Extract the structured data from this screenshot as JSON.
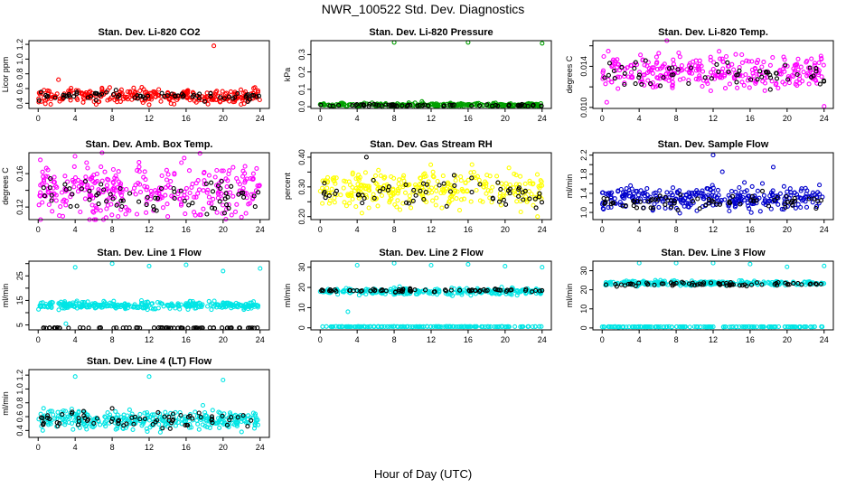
{
  "page": {
    "title": "NWR_100522  Std. Dev. Diagnostics",
    "x_caption": "Hour of Day (UTC)"
  },
  "chart_data": [
    {
      "type": "scatter",
      "title": "Stan. Dev. Li-820 CO2",
      "ylabel": "Licor ppm",
      "xlim": [
        -1,
        25
      ],
      "ylim": [
        0.33,
        1.25
      ],
      "xticks": [
        0,
        4,
        8,
        12,
        16,
        20,
        24
      ],
      "yticks": [
        0.4,
        0.6,
        0.8,
        1.0,
        1.2
      ],
      "ytick_labels": [
        "0.4",
        "0.6",
        "0.8",
        "1.0",
        "1.2"
      ],
      "series": [
        {
          "color": "#ff0000",
          "base": 0.5,
          "spread": 0.05,
          "n": 280,
          "outliers": [
            [
              19.0,
              1.18
            ],
            [
              2.2,
              0.72
            ],
            [
              12.0,
              0.38
            ]
          ]
        },
        {
          "color": "#000000",
          "base": 0.5,
          "spread": 0.03,
          "n": 70,
          "outliers": []
        }
      ]
    },
    {
      "type": "scatter",
      "title": "Stan. Dev. Li-820 Pressure",
      "ylabel": "kPa",
      "xlim": [
        -1,
        25
      ],
      "ylim": [
        -0.01,
        0.38
      ],
      "xticks": [
        0,
        4,
        8,
        12,
        16,
        20,
        24
      ],
      "yticks": [
        0.0,
        0.1,
        0.2,
        0.3
      ],
      "ytick_labels": [
        "0.0",
        "0.1",
        "0.2",
        "0.3"
      ],
      "series": [
        {
          "color": "#00a000",
          "base": 0.01,
          "spread": 0.005,
          "n": 260,
          "outliers": [
            [
              8.0,
              0.37
            ],
            [
              16.0,
              0.37
            ],
            [
              24.0,
              0.365
            ],
            [
              11.0,
              0.03
            ]
          ]
        },
        {
          "color": "#000000",
          "base": 0.008,
          "spread": 0.003,
          "n": 60,
          "outliers": []
        }
      ]
    },
    {
      "type": "scatter",
      "title": "Stan. Dev. Li-820 Temp.",
      "ylabel": "degrees C",
      "xlim": [
        -1,
        25
      ],
      "ylim": [
        0.0099,
        0.0165
      ],
      "xticks": [
        0,
        4,
        8,
        12,
        16,
        20,
        24
      ],
      "yticks": [
        0.01,
        0.012,
        0.014,
        0.016
      ],
      "ytick_labels": [
        "0.010",
        "",
        "0.014",
        ""
      ],
      "series": [
        {
          "color": "#ff00ff",
          "base": 0.0135,
          "spread": 0.0008,
          "n": 300,
          "outliers": [
            [
              7.0,
              0.0165
            ],
            [
              24.0,
              0.0101
            ],
            [
              0.5,
              0.0105
            ]
          ]
        },
        {
          "color": "#000000",
          "base": 0.0132,
          "spread": 0.0007,
          "n": 60,
          "outliers": []
        }
      ]
    },
    {
      "type": "scatter",
      "title": "Stan. Dev. Amb. Box Temp.",
      "ylabel": "degrees C",
      "xlim": [
        -1,
        25
      ],
      "ylim": [
        0.105,
        0.185
      ],
      "xticks": [
        0,
        4,
        8,
        12,
        16,
        20,
        24
      ],
      "yticks": [
        0.12,
        0.14,
        0.16
      ],
      "ytick_labels": [
        "0.12",
        "",
        "0.16"
      ],
      "series": [
        {
          "color": "#ff00ff",
          "base": 0.14,
          "spread": 0.016,
          "n": 320,
          "outliers": []
        },
        {
          "color": "#000000",
          "base": 0.135,
          "spread": 0.01,
          "n": 70,
          "outliers": []
        }
      ]
    },
    {
      "type": "scatter",
      "title": "Stan. Dev. Gas Stream RH",
      "ylabel": "percent",
      "xlim": [
        -1,
        25
      ],
      "ylim": [
        0.19,
        0.415
      ],
      "xticks": [
        0,
        4,
        8,
        12,
        16,
        20,
        24
      ],
      "yticks": [
        0.2,
        0.25,
        0.3,
        0.35,
        0.4
      ],
      "ytick_labels": [
        "0.20",
        "",
        "0.30",
        "",
        "0.40"
      ],
      "series": [
        {
          "color": "#ffff00",
          "base": 0.29,
          "spread": 0.03,
          "n": 320,
          "outliers": [
            [
              23.5,
              0.2
            ]
          ]
        },
        {
          "color": "#000000",
          "base": 0.28,
          "spread": 0.03,
          "n": 60,
          "outliers": [
            [
              5.0,
              0.4
            ]
          ]
        }
      ]
    },
    {
      "type": "scatter",
      "title": "Stan. Dev. Sample Flow",
      "ylabel": "ml/min",
      "xlim": [
        -1,
        25
      ],
      "ylim": [
        0.85,
        2.25
      ],
      "xticks": [
        0,
        4,
        8,
        12,
        16,
        20,
        24
      ],
      "yticks": [
        1.0,
        1.2,
        1.4,
        1.6,
        1.8,
        2.0,
        2.2
      ],
      "ytick_labels": [
        "1.0",
        "",
        "1.4",
        "",
        "1.8",
        "",
        "2.2"
      ],
      "series": [
        {
          "color": "#0000cc",
          "base": 1.3,
          "spread": 0.12,
          "n": 320,
          "outliers": [
            [
              12.0,
              2.2
            ],
            [
              18.5,
              1.95
            ],
            [
              13.0,
              1.85
            ]
          ]
        },
        {
          "color": "#000000",
          "base": 1.22,
          "spread": 0.08,
          "n": 70,
          "outliers": []
        }
      ]
    },
    {
      "type": "scatter",
      "title": "Stan. Dev. Line 1 Flow",
      "ylabel": "ml/min",
      "xlim": [
        -1,
        25
      ],
      "ylim": [
        3,
        31
      ],
      "xticks": [
        0,
        4,
        8,
        12,
        16,
        20,
        24
      ],
      "yticks": [
        5,
        10,
        15,
        20,
        25,
        30
      ],
      "ytick_labels": [
        "5",
        "",
        "15",
        "",
        "25",
        ""
      ],
      "series": [
        {
          "color": "#00e5e5",
          "base": 13.0,
          "spread": 0.8,
          "n": 320,
          "outliers": [
            [
              4.0,
              28.5
            ],
            [
              8.0,
              30.0
            ],
            [
              12.0,
              29.0
            ],
            [
              16.0,
              29.5
            ],
            [
              20.0,
              27.0
            ],
            [
              24.0,
              28.0
            ],
            [
              3.0,
              5.5
            ]
          ]
        },
        {
          "color": "#000000",
          "base": 3.8,
          "spread": 0.05,
          "n": 70,
          "outliers": []
        }
      ]
    },
    {
      "type": "scatter",
      "title": "Stan. Dev. Line 2 Flow",
      "ylabel": "ml/min",
      "xlim": [
        -1,
        25
      ],
      "ylim": [
        -1,
        33
      ],
      "xticks": [
        0,
        4,
        8,
        12,
        16,
        20,
        24
      ],
      "yticks": [
        0,
        10,
        20,
        30
      ],
      "ytick_labels": [
        "0",
        "10",
        "20",
        "30"
      ],
      "series": [
        {
          "color": "#00e5e5",
          "base": 18.0,
          "spread": 0.8,
          "n": 260,
          "outliers": [
            [
              4.0,
              31.0
            ],
            [
              8.0,
              32.0
            ],
            [
              12.0,
              31.0
            ],
            [
              16.0,
              31.5
            ],
            [
              20.0,
              30.5
            ],
            [
              24.0,
              30.0
            ],
            [
              3.0,
              8.0
            ]
          ]
        },
        {
          "color": "#00e5e5",
          "base": 0.6,
          "spread": 0.05,
          "n": 160,
          "outliers": []
        },
        {
          "color": "#000000",
          "base": 18.5,
          "spread": 0.4,
          "n": 70,
          "outliers": []
        }
      ]
    },
    {
      "type": "scatter",
      "title": "Stan. Dev. Line 3 Flow",
      "ylabel": "ml/min",
      "xlim": [
        -1,
        25
      ],
      "ylim": [
        -1,
        35
      ],
      "xticks": [
        0,
        4,
        8,
        12,
        16,
        20,
        24
      ],
      "yticks": [
        0,
        10,
        20,
        30
      ],
      "ytick_labels": [
        "0",
        "10",
        "20",
        "30"
      ],
      "series": [
        {
          "color": "#00e5e5",
          "base": 23.5,
          "spread": 0.6,
          "n": 240,
          "outliers": [
            [
              4.0,
              34.0
            ],
            [
              8.0,
              34.0
            ],
            [
              12.0,
              34.0
            ],
            [
              16.0,
              33.5
            ],
            [
              20.0,
              32.0
            ],
            [
              24.0,
              32.5
            ]
          ]
        },
        {
          "color": "#00e5e5",
          "base": 0.6,
          "spread": 0.05,
          "n": 160,
          "outliers": []
        },
        {
          "color": "#000000",
          "base": 23.0,
          "spread": 0.5,
          "n": 70,
          "outliers": []
        }
      ]
    },
    {
      "type": "scatter",
      "title": "Stan. Dev. Line 4 (LT) Flow",
      "ylabel": "ml/min",
      "xlim": [
        -1,
        25
      ],
      "ylim": [
        0.3,
        1.28
      ],
      "xticks": [
        0,
        4,
        8,
        12,
        16,
        20,
        24
      ],
      "yticks": [
        0.4,
        0.6,
        0.8,
        1.0,
        1.2
      ],
      "ytick_labels": [
        "0.4",
        "0.6",
        "0.8",
        "1.0",
        "1.2"
      ],
      "series": [
        {
          "color": "#00e5e5",
          "base": 0.55,
          "spread": 0.07,
          "n": 320,
          "outliers": [
            [
              4.0,
              1.18
            ],
            [
              12.0,
              1.18
            ],
            [
              20.0,
              1.13
            ],
            [
              0.5,
              0.4
            ],
            [
              22.0,
              0.38
            ]
          ]
        },
        {
          "color": "#000000",
          "base": 0.55,
          "spread": 0.06,
          "n": 70,
          "outliers": [
            [
              8.0,
              0.72
            ]
          ]
        }
      ]
    }
  ]
}
